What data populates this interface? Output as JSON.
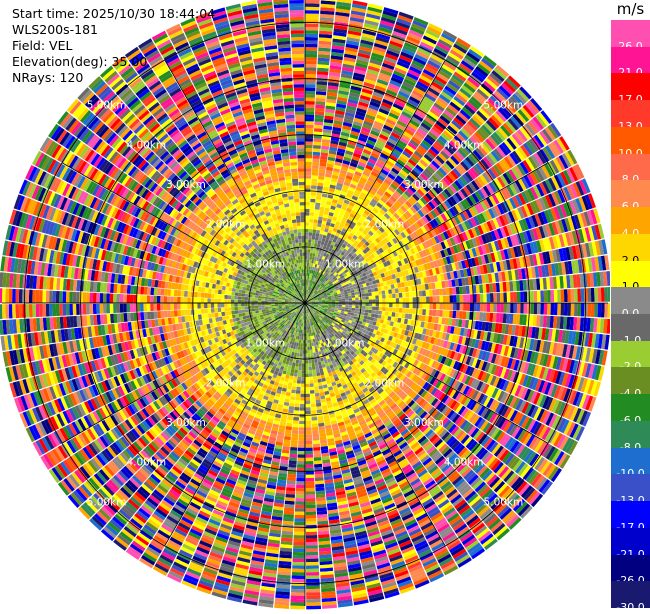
{
  "info": {
    "start_time": "Start time: 2025/10/30 18:44:04",
    "station": "WLS200s-181",
    "field": "Field: VEL",
    "elevation": "Elevation(deg): 35.00",
    "nrays": "NRays: 120"
  },
  "colorbar": {
    "unit": "m/s",
    "levels": [
      {
        "label": "26.0",
        "color": "#ff4fb0"
      },
      {
        "label": "21.0",
        "color": "#ff1493"
      },
      {
        "label": "17.0",
        "color": "#ff0000"
      },
      {
        "label": "13.0",
        "color": "#ff3a2a"
      },
      {
        "label": "10.0",
        "color": "#ff5a00"
      },
      {
        "label": "8.0",
        "color": "#ff6a4a"
      },
      {
        "label": "6.0",
        "color": "#ff8a50"
      },
      {
        "label": "4.0",
        "color": "#ffa500"
      },
      {
        "label": "2.0",
        "color": "#ffd700"
      },
      {
        "label": "1.0",
        "color": "#ffff00"
      },
      {
        "label": "0.0",
        "color": "#8a8a8a"
      },
      {
        "label": "-1.0",
        "color": "#696969"
      },
      {
        "label": "-2.0",
        "color": "#9acd32"
      },
      {
        "label": "-4.0",
        "color": "#6b8e23"
      },
      {
        "label": "-6.0",
        "color": "#228b22"
      },
      {
        "label": "-8.0",
        "color": "#2e8b57"
      },
      {
        "label": "-10.0",
        "color": "#1e6ed0"
      },
      {
        "label": "-13.0",
        "color": "#3a50c8"
      },
      {
        "label": "-17.0",
        "color": "#0000ff"
      },
      {
        "label": "-21.0",
        "color": "#0000cd"
      },
      {
        "label": "-26.0",
        "color": "#000080"
      },
      {
        "label": "-30.0",
        "color": "#191970"
      }
    ]
  },
  "chart_data": {
    "type": "heatmap",
    "projection": "polar-ppi",
    "field": "VEL",
    "units": "m/s",
    "range_rings_km": [
      1.0,
      2.0,
      3.0,
      4.0,
      5.0
    ],
    "ring_labels": [
      "1.00km",
      "2.00km",
      "3.00km",
      "4.00km",
      "5.00km"
    ],
    "max_range_km": 5.4,
    "azimuth_spoke_step_deg": 30,
    "nrays": 120,
    "zones": [
      {
        "from_km": 0.0,
        "to_km": 0.6,
        "dominant": "-6.0 to -1.0",
        "description": "mostly green / grey"
      },
      {
        "from_km": 0.6,
        "to_km": 1.3,
        "dominant": "-4.0 to 1.0",
        "description": "green west/south, grey-yellow north"
      },
      {
        "from_km": 1.3,
        "to_km": 2.2,
        "dominant": "0.0 to 4.0",
        "description": "yellow / grey band"
      },
      {
        "from_km": 2.2,
        "to_km": 2.6,
        "dominant": "4.0 to 8.0",
        "description": "orange edge"
      },
      {
        "from_km": 2.6,
        "to_km": 5.4,
        "dominant": "-30.0 to 26.0",
        "description": "noise - all colours"
      }
    ]
  }
}
